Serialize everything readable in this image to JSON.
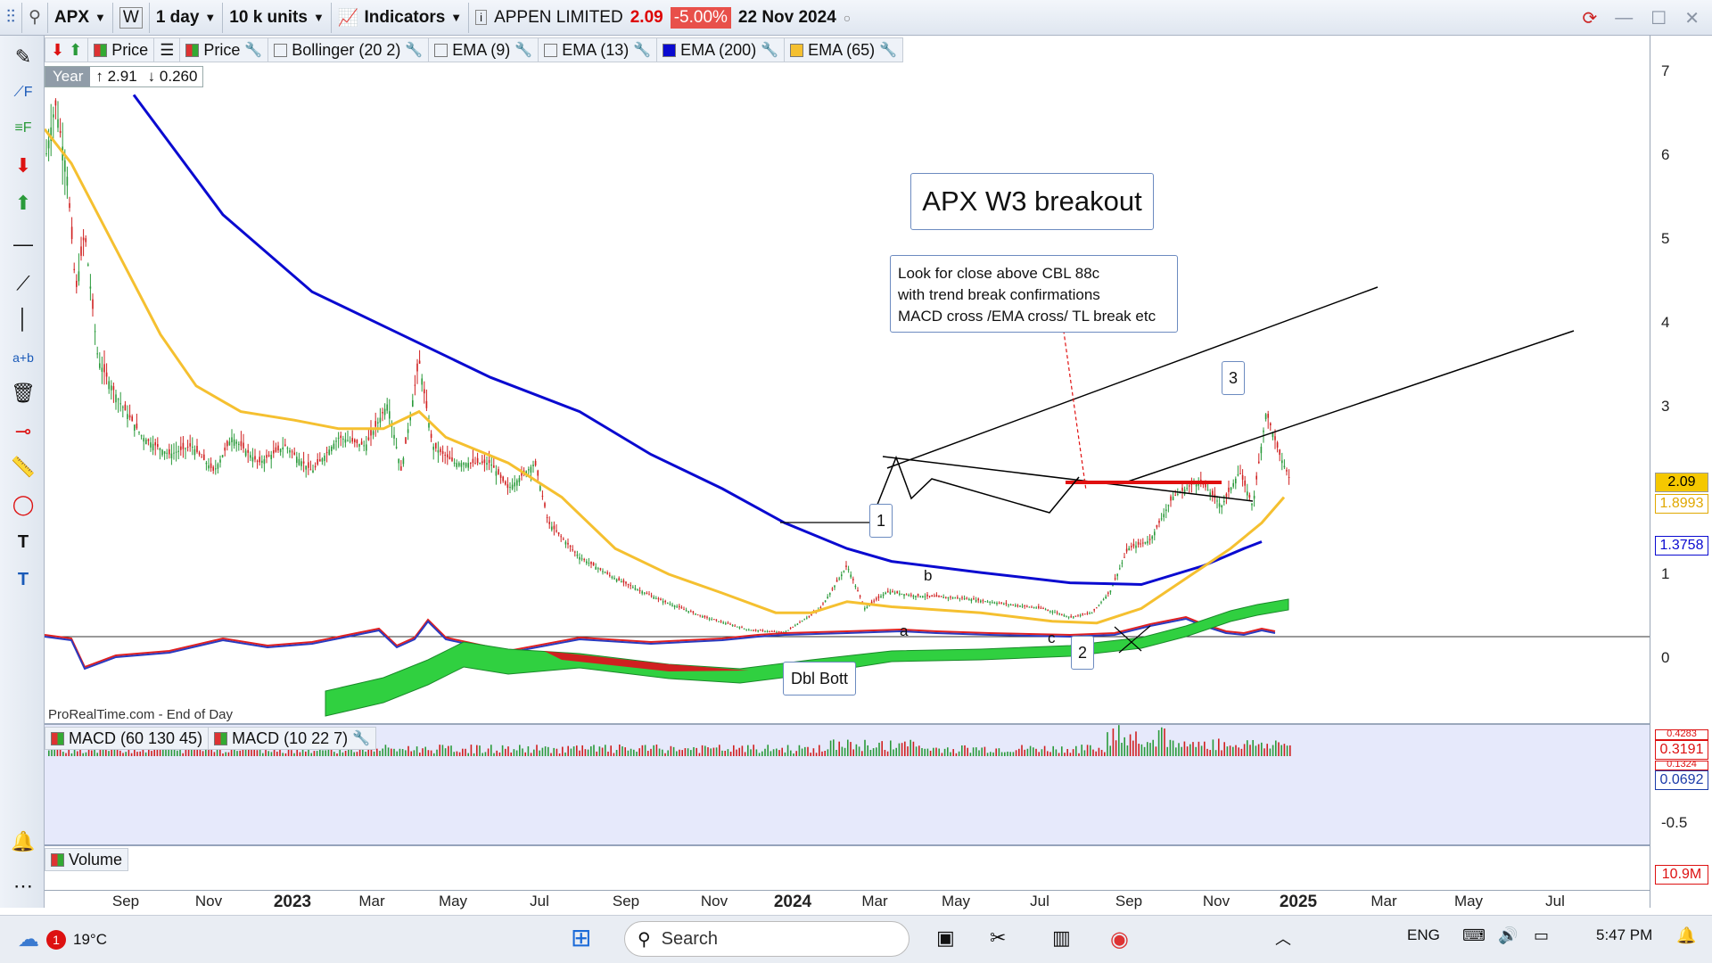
{
  "toolbar": {
    "symbol": "APX",
    "chart_style": "W",
    "interval": "1 day",
    "units": "10 k units",
    "indicators_label": "Indicators",
    "security_name": "APPEN LIMITED",
    "last_price": "2.09",
    "change_pct": "-5.00%",
    "date": "22 Nov 2024"
  },
  "legend": {
    "price1": "Price",
    "price2": "Price",
    "bollinger": "Bollinger (20 2)",
    "ema9": "EMA (9)",
    "ema13": "EMA (13)",
    "ema200": "EMA (200)",
    "ema65": "EMA (65)",
    "ema200_color": "#0a0ad0",
    "ema65_color": "#f5c030"
  },
  "period": {
    "label": "Year",
    "high": "↑ 2.91",
    "low": "↓ 0.260"
  },
  "annotations": {
    "title": "APX W3 breakout",
    "note_lines": [
      "Look for close above CBL 88c",
      "with trend break confirmations",
      "MACD cross /EMA cross/ TL break etc"
    ],
    "wave1": "1",
    "wave2": "2",
    "wave3": "3",
    "a": "a",
    "b": "b",
    "c": "c",
    "dbl_bott": "Dbl Bott"
  },
  "footer": "ProRealTime.com - End of Day",
  "price_axis": {
    "ticks": [
      "7",
      "6",
      "5",
      "4",
      "3",
      "2.09",
      "1.8993",
      "1.3758",
      "1",
      "0"
    ],
    "last_tag": "2.09",
    "ema65_tag": "1.8993",
    "ema200_tag": "1.3758"
  },
  "macd_panel": {
    "legend1": "MACD (60 130 45)",
    "legend2": "MACD (10 22 7)",
    "tag1": "0.3191",
    "tag2": "0.0692",
    "tick": "-0.5",
    "tag_top_partial": "0.4283",
    "tag_mid_partial": "0.1324"
  },
  "volume_panel": {
    "legend": "Volume",
    "tag": "10.9M"
  },
  "x_axis": [
    "Sep",
    "Nov",
    "2023",
    "Mar",
    "May",
    "Jul",
    "Sep",
    "Nov",
    "2024",
    "Mar",
    "May",
    "Jul",
    "Sep",
    "Nov",
    "2025",
    "Mar",
    "May",
    "Jul"
  ],
  "taskbar": {
    "weather_temp": "19°C",
    "notif_count": "1",
    "search_placeholder": "Search",
    "lang": "ENG",
    "time": "5:47 PM"
  }
}
